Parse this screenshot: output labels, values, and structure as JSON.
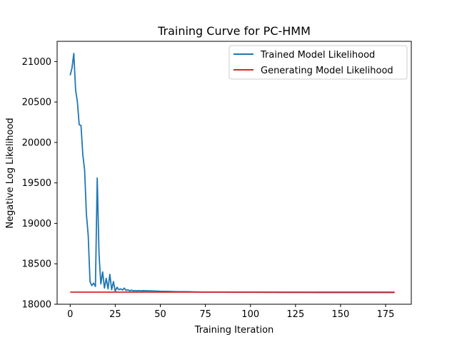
{
  "chart_data": {
    "type": "line",
    "title": "Training Curve for PC-HMM",
    "xlabel": "Training Iteration",
    "ylabel": "Negative Log Likelihood",
    "xlim": [
      -7.25,
      189.25
    ],
    "ylim": [
      18000,
      21250
    ],
    "xticks": [
      0,
      25,
      50,
      75,
      100,
      125,
      150,
      175
    ],
    "yticks": [
      18000,
      18500,
      19000,
      19500,
      20000,
      20500,
      21000
    ],
    "grid": false,
    "legend_position": "upper right",
    "series": [
      {
        "name": "Trained Model Likelihood",
        "color": "#1f77b4",
        "x": [
          0,
          1,
          2,
          3,
          4,
          5,
          6,
          7,
          8,
          9,
          10,
          11,
          12,
          13,
          14,
          15,
          16,
          17,
          18,
          19,
          20,
          21,
          22,
          23,
          24,
          25,
          26,
          27,
          28,
          29,
          30,
          31,
          32,
          33,
          34,
          35,
          36,
          37,
          38,
          39,
          40,
          45,
          50,
          55,
          60,
          65,
          70,
          75,
          80,
          90,
          100,
          110,
          120,
          130,
          140,
          150,
          160,
          170,
          180
        ],
        "y": [
          20830,
          20920,
          21100,
          20650,
          20500,
          20220,
          20210,
          19850,
          19660,
          19110,
          18850,
          18280,
          18230,
          18260,
          18220,
          19560,
          18620,
          18250,
          18400,
          18200,
          18320,
          18190,
          18370,
          18180,
          18280,
          18160,
          18210,
          18180,
          18190,
          18175,
          18200,
          18170,
          18180,
          18165,
          18175,
          18165,
          18170,
          18165,
          18170,
          18165,
          18168,
          18165,
          18160,
          18158,
          18155,
          18155,
          18152,
          18150,
          18150,
          18148,
          18148,
          18147,
          18146,
          18146,
          18145,
          18145,
          18145,
          18145,
          18145
        ]
      },
      {
        "name": "Generating Model Likelihood",
        "color": "#d62728",
        "x": [
          0,
          180
        ],
        "y": [
          18150,
          18150
        ]
      }
    ]
  }
}
